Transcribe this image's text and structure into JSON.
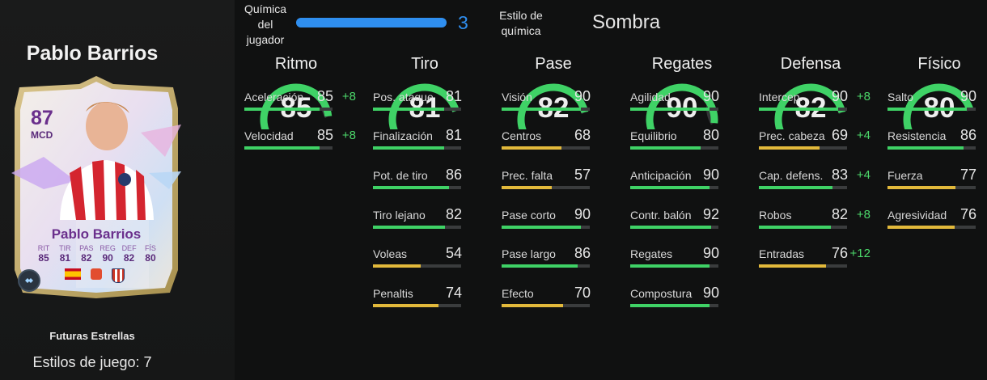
{
  "player": {
    "name": "Pablo Barrios",
    "rating": "87",
    "position": "MCD",
    "card_name": "Pablo Barrios",
    "card_stats": [
      {
        "label": "RIT",
        "value": "85"
      },
      {
        "label": "TIR",
        "value": "81"
      },
      {
        "label": "PAS",
        "value": "82"
      },
      {
        "label": "REG",
        "value": "90"
      },
      {
        "label": "DEF",
        "value": "82"
      },
      {
        "label": "FÍS",
        "value": "80"
      }
    ],
    "card_type": "Futuras Estrellas",
    "playstyles": "Estilos de juego: 7"
  },
  "chemistry": {
    "label": "Química del jugador",
    "value": "3",
    "max": 3,
    "style_label": "Estilo de química",
    "style_value": "Sombra"
  },
  "colors": {
    "high": "#3fd266",
    "mid": "#e2b93b",
    "gauge_track": "#333637",
    "chem_blue": "#2f8ff0",
    "boost": "#4cd96b"
  },
  "categories": [
    {
      "title": "Ritmo",
      "value": "85",
      "stats": [
        {
          "label": "Aceleración",
          "value": "85",
          "boost": "+8"
        },
        {
          "label": "Velocidad",
          "value": "85",
          "boost": "+8"
        }
      ]
    },
    {
      "title": "Tiro",
      "value": "81",
      "stats": [
        {
          "label": "Pos. ataque",
          "value": "81",
          "boost": ""
        },
        {
          "label": "Finalización",
          "value": "81",
          "boost": ""
        },
        {
          "label": "Pot. de tiro",
          "value": "86",
          "boost": ""
        },
        {
          "label": "Tiro lejano",
          "value": "82",
          "boost": ""
        },
        {
          "label": "Voleas",
          "value": "54",
          "boost": ""
        },
        {
          "label": "Penaltis",
          "value": "74",
          "boost": ""
        }
      ]
    },
    {
      "title": "Pase",
      "value": "82",
      "stats": [
        {
          "label": "Visión",
          "value": "90",
          "boost": ""
        },
        {
          "label": "Centros",
          "value": "68",
          "boost": ""
        },
        {
          "label": "Prec. falta",
          "value": "57",
          "boost": ""
        },
        {
          "label": "Pase corto",
          "value": "90",
          "boost": ""
        },
        {
          "label": "Pase largo",
          "value": "86",
          "boost": ""
        },
        {
          "label": "Efecto",
          "value": "70",
          "boost": ""
        }
      ]
    },
    {
      "title": "Regates",
      "value": "90",
      "stats": [
        {
          "label": "Agilidad",
          "value": "90",
          "boost": ""
        },
        {
          "label": "Equilibrio",
          "value": "80",
          "boost": ""
        },
        {
          "label": "Anticipación",
          "value": "90",
          "boost": ""
        },
        {
          "label": "Contr. balón",
          "value": "92",
          "boost": ""
        },
        {
          "label": "Regates",
          "value": "90",
          "boost": ""
        },
        {
          "label": "Compostura",
          "value": "90",
          "boost": ""
        }
      ]
    },
    {
      "title": "Defensa",
      "value": "82",
      "stats": [
        {
          "label": "Intercep.",
          "value": "90",
          "boost": "+8"
        },
        {
          "label": "Prec. cabeza",
          "value": "69",
          "boost": "+4"
        },
        {
          "label": "Cap. defens.",
          "value": "83",
          "boost": "+4"
        },
        {
          "label": "Robos",
          "value": "82",
          "boost": "+8"
        },
        {
          "label": "Entradas",
          "value": "76",
          "boost": "+12"
        }
      ]
    },
    {
      "title": "Físico",
      "value": "80",
      "stats": [
        {
          "label": "Salto",
          "value": "90",
          "boost": ""
        },
        {
          "label": "Resistencia",
          "value": "86",
          "boost": ""
        },
        {
          "label": "Fuerza",
          "value": "77",
          "boost": ""
        },
        {
          "label": "Agresividad",
          "value": "76",
          "boost": ""
        }
      ]
    }
  ]
}
